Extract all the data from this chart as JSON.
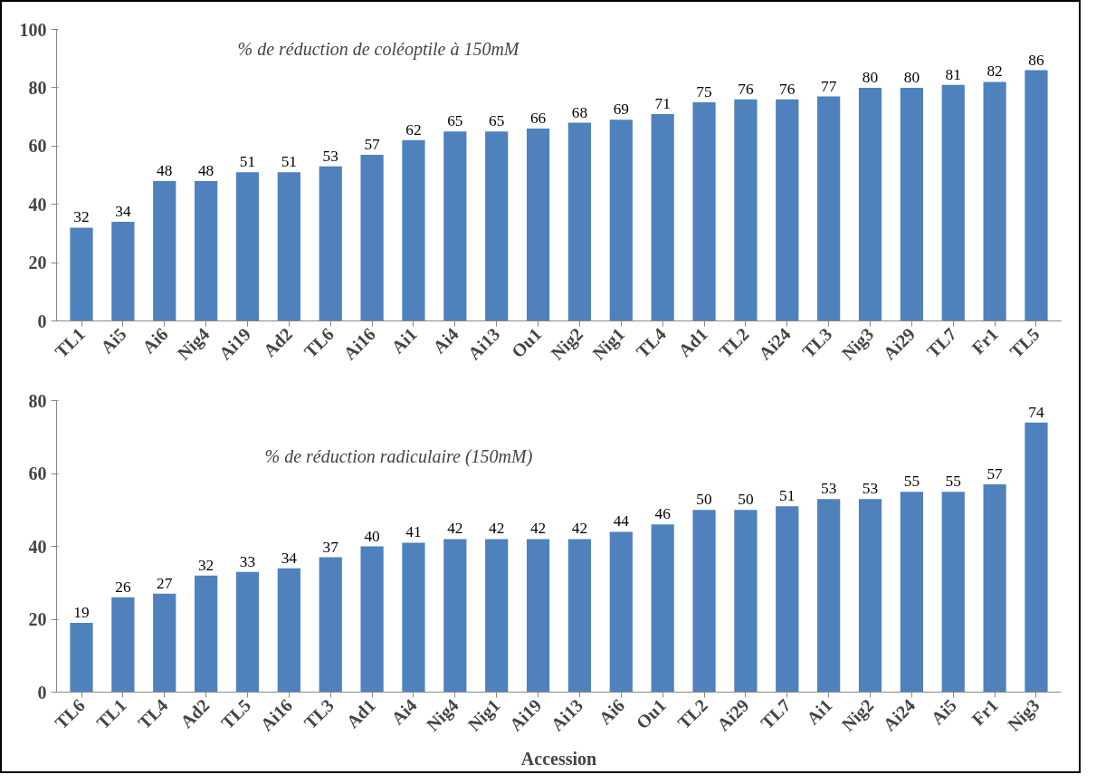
{
  "chart_data": [
    {
      "type": "bar",
      "title": "% de réduction de coléoptile  à 150mM",
      "categories": [
        "TL1",
        "Ai5",
        "Ai6",
        "Nig4",
        "Ai19",
        "Ad2",
        "TL6",
        "Ai16",
        "Ai1",
        "Ai4",
        "Ai13",
        "Ou1",
        "Nig2",
        "Nig1",
        "TL4",
        "Ad1",
        "TL2",
        "Ai24",
        "TL3",
        "Nig3",
        "Ai29",
        "TL7",
        "Fr1",
        "TL5"
      ],
      "values": [
        32,
        34,
        48,
        48,
        51,
        51,
        53,
        57,
        62,
        65,
        65,
        66,
        68,
        69,
        71,
        75,
        76,
        76,
        77,
        80,
        80,
        81,
        82,
        86
      ],
      "color": "#4f81bd",
      "ylim": [
        0,
        100
      ],
      "yticks": [
        0,
        20,
        40,
        60,
        80,
        100
      ],
      "grid": false,
      "data_labels": true
    },
    {
      "type": "bar",
      "title": "% de réduction radiculaire (150mM)",
      "xlabel": "Accession",
      "categories": [
        "TL6",
        "TL1",
        "TL4",
        "Ad2",
        "TL5",
        "Ai16",
        "TL3",
        "Ad1",
        "Ai4",
        "Nig4",
        "Nig1",
        "Ai19",
        "Ai13",
        "Ai6",
        "Ou1",
        "TL2",
        "Ai29",
        "TL7",
        "Ai1",
        "Nig2",
        "Ai24",
        "Ai5",
        "Fr1",
        "Nig3"
      ],
      "values": [
        19,
        26,
        27,
        32,
        33,
        34,
        37,
        40,
        41,
        42,
        42,
        42,
        42,
        44,
        46,
        50,
        50,
        51,
        53,
        53,
        55,
        55,
        57,
        74
      ],
      "color": "#4f81bd",
      "ylim": [
        0,
        80
      ],
      "yticks": [
        0,
        20,
        40,
        60,
        80
      ],
      "grid": false,
      "data_labels": true
    }
  ]
}
